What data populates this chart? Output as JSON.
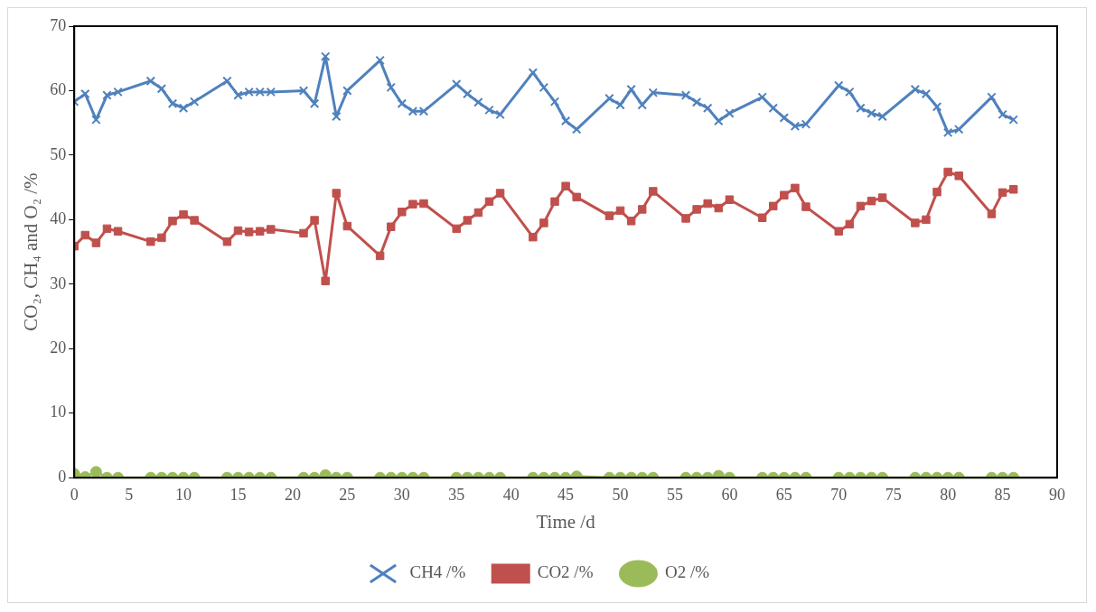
{
  "chart_data": {
    "type": "line",
    "xlabel": "Time /d",
    "ylabel": "CO₂, CH₄ and O₂ /%",
    "x": [
      0,
      1,
      2,
      3,
      4,
      7,
      8,
      9,
      10,
      11,
      14,
      15,
      16,
      17,
      18,
      21,
      22,
      23,
      24,
      25,
      28,
      29,
      30,
      31,
      32,
      35,
      36,
      37,
      38,
      39,
      42,
      43,
      44,
      45,
      46,
      49,
      50,
      51,
      52,
      53,
      56,
      57,
      58,
      59,
      60,
      63,
      64,
      65,
      66,
      67,
      70,
      71,
      72,
      73,
      74,
      77,
      78,
      79,
      80,
      81,
      84,
      85,
      86
    ],
    "series": [
      {
        "name": "CH4 /%",
        "color": "#4f81bd",
        "marker": "cross",
        "values": [
          58.3,
          59.5,
          55.5,
          59.3,
          59.8,
          61.5,
          60.3,
          58,
          57.3,
          58.3,
          61.5,
          59.3,
          59.8,
          59.8,
          59.8,
          60,
          58,
          65.3,
          56,
          60,
          64.7,
          60.5,
          58,
          56.8,
          56.8,
          61,
          59.5,
          58.2,
          57,
          56.3,
          62.8,
          60.5,
          58.3,
          55.3,
          54,
          58.8,
          57.8,
          60.2,
          57.8,
          59.7,
          59.3,
          58.2,
          57.3,
          55.3,
          56.5,
          59,
          57.3,
          55.8,
          54.5,
          54.8,
          60.8,
          59.8,
          57.3,
          56.5,
          56,
          60.2,
          59.5,
          57.5,
          53.5,
          54,
          59,
          56.3,
          55.5
        ]
      },
      {
        "name": "CO2 /%",
        "color": "#c0504d",
        "marker": "square",
        "values": [
          35.9,
          37.6,
          36.4,
          38.6,
          38.2,
          36.6,
          37.2,
          39.8,
          40.8,
          39.9,
          36.6,
          38.3,
          38.1,
          38.2,
          38.5,
          37.9,
          39.9,
          30.5,
          44.1,
          39,
          34.4,
          38.9,
          41.2,
          42.4,
          42.5,
          38.6,
          39.9,
          41.1,
          42.8,
          44.1,
          37.3,
          39.5,
          42.8,
          45.2,
          43.5,
          40.6,
          41.4,
          39.8,
          41.6,
          44.4,
          40.2,
          41.6,
          42.5,
          41.8,
          43.1,
          40.3,
          42.1,
          43.8,
          44.9,
          42,
          38.2,
          39.3,
          42.1,
          42.9,
          43.4,
          39.5,
          40,
          44.3,
          47.4,
          46.8,
          40.9,
          44.2,
          44.7
        ]
      },
      {
        "name": "O2 /%",
        "color": "#9bbb59",
        "marker": "circle",
        "values": [
          0.6,
          0.1,
          0.9,
          0,
          0,
          0,
          0,
          0,
          0,
          0,
          0,
          0,
          0,
          0,
          0,
          0,
          0,
          0.4,
          0,
          0,
          0,
          0,
          0,
          0,
          0,
          0,
          0,
          0,
          0,
          0,
          0,
          0,
          0,
          0,
          0.2,
          0,
          0,
          0,
          0,
          0,
          0,
          0,
          0,
          0.3,
          0,
          0,
          0,
          0,
          0,
          0,
          0,
          0,
          0,
          0,
          0,
          0,
          0,
          0,
          0,
          0,
          0,
          0,
          0
        ]
      }
    ],
    "xlim": [
      0,
      90
    ],
    "xticks": [
      0,
      5,
      10,
      15,
      20,
      25,
      30,
      35,
      40,
      45,
      50,
      55,
      60,
      65,
      70,
      75,
      80,
      85,
      90
    ],
    "ylim": [
      0,
      70
    ],
    "yticks": [
      0,
      10,
      20,
      30,
      40,
      50,
      60,
      70
    ],
    "grid": false,
    "legend": "bottom",
    "line_style": "solid"
  }
}
